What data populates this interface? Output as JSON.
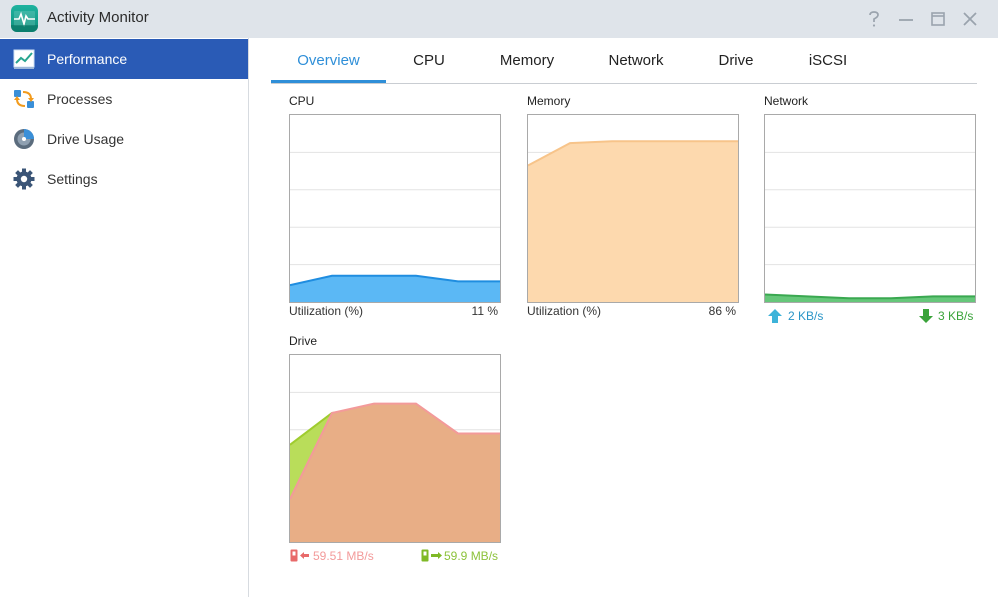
{
  "window": {
    "title": "Activity Monitor",
    "controls": [
      "help-icon",
      "minimize-icon",
      "maximize-icon",
      "close-icon"
    ]
  },
  "sidebar": {
    "items": [
      {
        "label": "Performance",
        "icon": "performance-chart-icon",
        "active": true
      },
      {
        "label": "Processes",
        "icon": "processes-icon",
        "active": false
      },
      {
        "label": "Drive Usage",
        "icon": "drive-usage-icon",
        "active": false
      },
      {
        "label": "Settings",
        "icon": "gear-icon",
        "active": false
      }
    ]
  },
  "tabs": [
    {
      "label": "Overview",
      "active": true
    },
    {
      "label": "CPU",
      "active": false
    },
    {
      "label": "Memory",
      "active": false
    },
    {
      "label": "Network",
      "active": false
    },
    {
      "label": "Drive",
      "active": false
    },
    {
      "label": "iSCSI",
      "active": false
    }
  ],
  "overview": {
    "cpu": {
      "title": "CPU",
      "stat_label": "Utilization (%)",
      "stat_value": "11 %"
    },
    "memory": {
      "title": "Memory",
      "stat_label": "Utilization (%)",
      "stat_value": "86 %"
    },
    "network": {
      "title": "Network",
      "upload": "2 KB/s",
      "download": "3 KB/s"
    },
    "drive": {
      "title": "Drive",
      "read": "59.51 MB/s",
      "write": "59.9 MB/s"
    }
  },
  "chart_data": [
    {
      "type": "area",
      "name": "cpu",
      "ylim": [
        0,
        100
      ],
      "grid": true,
      "color": "#5bb8f5",
      "line": "#1f8de0",
      "series": [
        {
          "values": [
            9,
            14,
            14,
            14,
            11,
            11
          ]
        }
      ]
    },
    {
      "type": "area",
      "name": "memory",
      "ylim": [
        0,
        100
      ],
      "grid": true,
      "color": "#fdd9ae",
      "line": "#f7c48a",
      "series": [
        {
          "values": [
            73,
            85,
            86,
            86,
            86,
            86
          ]
        }
      ]
    },
    {
      "type": "area",
      "name": "network",
      "ylim": [
        0,
        100
      ],
      "grid": true,
      "color": "#66c77a",
      "line": "#3aa850",
      "series": [
        {
          "values": [
            4,
            3,
            2,
            2,
            3,
            3
          ]
        }
      ]
    },
    {
      "type": "area",
      "name": "drive",
      "ylim": [
        0,
        100
      ],
      "grid": true,
      "series": [
        {
          "values": [
            52,
            69,
            71,
            71,
            58,
            58
          ],
          "color": "#b9dd5a",
          "line": "#9fcc2f"
        },
        {
          "values": [
            23,
            69,
            74,
            74,
            58,
            58
          ],
          "color": "#e8ae86",
          "line": "#f39a9a"
        }
      ]
    }
  ]
}
